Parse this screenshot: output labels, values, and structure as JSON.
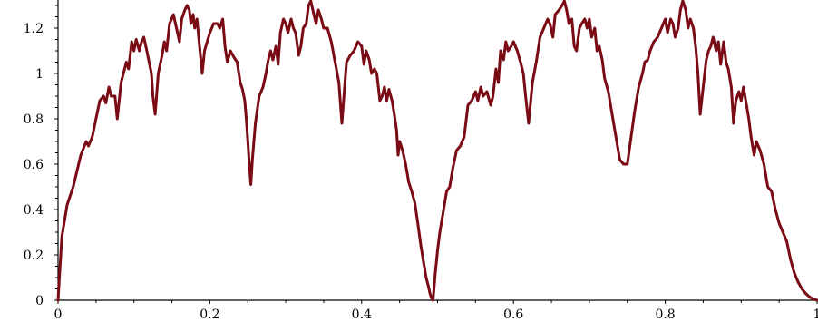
{
  "chart_data": {
    "type": "line",
    "title": "",
    "xlabel": "",
    "ylabel": "",
    "xlim": [
      0,
      1
    ],
    "ylim": [
      0,
      1.3
    ],
    "grid": false,
    "x_ticks": [
      0,
      0.2,
      0.4,
      0.6,
      0.8,
      1
    ],
    "x_tick_labels": [
      "0",
      "0.2",
      "0.4",
      "0.6",
      "0.8",
      "1"
    ],
    "y_ticks": [
      0,
      0.2,
      0.4,
      0.6,
      0.8,
      1,
      1.2
    ],
    "y_tick_labels": [
      "0",
      "0.2",
      "0.4",
      "0.6",
      "0.8",
      "1",
      "1.2"
    ],
    "series": [
      {
        "color": "#7a0a14",
        "points": [
          [
            0,
            0
          ],
          [
            0.005,
            0.28
          ],
          [
            0.012,
            0.42
          ],
          [
            0.02,
            0.5
          ],
          [
            0.03,
            0.64
          ],
          [
            0.037,
            0.7
          ],
          [
            0.04,
            0.68
          ],
          [
            0.045,
            0.72
          ],
          [
            0.05,
            0.8
          ],
          [
            0.055,
            0.88
          ],
          [
            0.06,
            0.9
          ],
          [
            0.063,
            0.87
          ],
          [
            0.067,
            0.94
          ],
          [
            0.07,
            0.9
          ],
          [
            0.075,
            0.9
          ],
          [
            0.078,
            0.8
          ],
          [
            0.083,
            0.96
          ],
          [
            0.09,
            1.05
          ],
          [
            0.093,
            1.02
          ],
          [
            0.097,
            1.14
          ],
          [
            0.1,
            1.1
          ],
          [
            0.103,
            1.15
          ],
          [
            0.107,
            1.1
          ],
          [
            0.11,
            1.14
          ],
          [
            0.113,
            1.16
          ],
          [
            0.117,
            1.1
          ],
          [
            0.12,
            1.05
          ],
          [
            0.123,
            1.0
          ],
          [
            0.125,
            0.9
          ],
          [
            0.128,
            0.82
          ],
          [
            0.132,
            1.0
          ],
          [
            0.137,
            1.08
          ],
          [
            0.14,
            1.14
          ],
          [
            0.143,
            1.1
          ],
          [
            0.147,
            1.22
          ],
          [
            0.152,
            1.26
          ],
          [
            0.156,
            1.2
          ],
          [
            0.16,
            1.14
          ],
          [
            0.163,
            1.24
          ],
          [
            0.167,
            1.28
          ],
          [
            0.17,
            1.3
          ],
          [
            0.173,
            1.28
          ],
          [
            0.175,
            1.22
          ],
          [
            0.178,
            1.26
          ],
          [
            0.18,
            1.2
          ],
          [
            0.183,
            1.24
          ],
          [
            0.187,
            1.1
          ],
          [
            0.19,
            1.0
          ],
          [
            0.193,
            1.1
          ],
          [
            0.2,
            1.18
          ],
          [
            0.205,
            1.22
          ],
          [
            0.21,
            1.22
          ],
          [
            0.213,
            1.2
          ],
          [
            0.217,
            1.24
          ],
          [
            0.22,
            1.12
          ],
          [
            0.223,
            1.05
          ],
          [
            0.227,
            1.1
          ],
          [
            0.232,
            1.07
          ],
          [
            0.236,
            1.05
          ],
          [
            0.24,
            0.96
          ],
          [
            0.243,
            0.93
          ],
          [
            0.246,
            0.88
          ],
          [
            0.248,
            0.8
          ],
          [
            0.25,
            0.7
          ],
          [
            0.252,
            0.6
          ],
          [
            0.254,
            0.51
          ],
          [
            0.256,
            0.62
          ],
          [
            0.26,
            0.78
          ],
          [
            0.265,
            0.9
          ],
          [
            0.27,
            0.94
          ],
          [
            0.274,
            1.0
          ],
          [
            0.277,
            1.06
          ],
          [
            0.28,
            1.1
          ],
          [
            0.283,
            1.06
          ],
          [
            0.287,
            1.12
          ],
          [
            0.29,
            1.04
          ],
          [
            0.293,
            1.18
          ],
          [
            0.297,
            1.24
          ],
          [
            0.3,
            1.22
          ],
          [
            0.303,
            1.18
          ],
          [
            0.307,
            1.24
          ],
          [
            0.31,
            1.2
          ],
          [
            0.313,
            1.18
          ],
          [
            0.317,
            1.08
          ],
          [
            0.32,
            1.12
          ],
          [
            0.323,
            1.2
          ],
          [
            0.327,
            1.22
          ],
          [
            0.33,
            1.3
          ],
          [
            0.333,
            1.32
          ],
          [
            0.337,
            1.26
          ],
          [
            0.34,
            1.22
          ],
          [
            0.343,
            1.28
          ],
          [
            0.347,
            1.24
          ],
          [
            0.35,
            1.2
          ],
          [
            0.355,
            1.2
          ],
          [
            0.36,
            1.14
          ],
          [
            0.365,
            1.05
          ],
          [
            0.37,
            0.96
          ],
          [
            0.374,
            0.78
          ],
          [
            0.378,
            0.96
          ],
          [
            0.38,
            1.05
          ],
          [
            0.385,
            1.08
          ],
          [
            0.39,
            1.1
          ],
          [
            0.395,
            1.14
          ],
          [
            0.4,
            1.12
          ],
          [
            0.403,
            1.04
          ],
          [
            0.406,
            1.1
          ],
          [
            0.41,
            1.06
          ],
          [
            0.413,
            1.0
          ],
          [
            0.417,
            1.02
          ],
          [
            0.42,
            1.0
          ],
          [
            0.424,
            0.88
          ],
          [
            0.427,
            0.9
          ],
          [
            0.43,
            0.94
          ],
          [
            0.433,
            0.88
          ],
          [
            0.436,
            0.93
          ],
          [
            0.44,
            0.88
          ],
          [
            0.443,
            0.82
          ],
          [
            0.446,
            0.75
          ],
          [
            0.448,
            0.64
          ],
          [
            0.45,
            0.7
          ],
          [
            0.454,
            0.66
          ],
          [
            0.458,
            0.6
          ],
          [
            0.462,
            0.52
          ],
          [
            0.466,
            0.48
          ],
          [
            0.47,
            0.43
          ],
          [
            0.474,
            0.34
          ],
          [
            0.478,
            0.24
          ],
          [
            0.482,
            0.16
          ],
          [
            0.485,
            0.1
          ],
          [
            0.488,
            0.06
          ],
          [
            0.49,
            0.03
          ],
          [
            0.492,
            0.01
          ],
          [
            0.494,
            0.0
          ],
          [
            0.497,
            0.12
          ],
          [
            0.5,
            0.22
          ],
          [
            0.503,
            0.3
          ],
          [
            0.508,
            0.4
          ],
          [
            0.512,
            0.48
          ],
          [
            0.516,
            0.5
          ],
          [
            0.52,
            0.58
          ],
          [
            0.525,
            0.66
          ],
          [
            0.53,
            0.68
          ],
          [
            0.535,
            0.72
          ],
          [
            0.54,
            0.86
          ],
          [
            0.545,
            0.88
          ],
          [
            0.55,
            0.92
          ],
          [
            0.553,
            0.88
          ],
          [
            0.557,
            0.94
          ],
          [
            0.56,
            0.9
          ],
          [
            0.565,
            0.92
          ],
          [
            0.57,
            0.86
          ],
          [
            0.573,
            0.9
          ],
          [
            0.577,
            1.02
          ],
          [
            0.58,
            0.96
          ],
          [
            0.583,
            1.1
          ],
          [
            0.587,
            1.06
          ],
          [
            0.59,
            1.14
          ],
          [
            0.593,
            1.1
          ],
          [
            0.597,
            1.12
          ],
          [
            0.6,
            1.14
          ],
          [
            0.605,
            1.1
          ],
          [
            0.61,
            1.04
          ],
          [
            0.613,
            1.0
          ],
          [
            0.616,
            0.9
          ],
          [
            0.62,
            0.78
          ],
          [
            0.625,
            0.96
          ],
          [
            0.63,
            1.05
          ],
          [
            0.635,
            1.16
          ],
          [
            0.64,
            1.2
          ],
          [
            0.645,
            1.24
          ],
          [
            0.648,
            1.22
          ],
          [
            0.652,
            1.16
          ],
          [
            0.655,
            1.26
          ],
          [
            0.66,
            1.28
          ],
          [
            0.664,
            1.3
          ],
          [
            0.667,
            1.32
          ],
          [
            0.67,
            1.28
          ],
          [
            0.673,
            1.22
          ],
          [
            0.677,
            1.24
          ],
          [
            0.68,
            1.12
          ],
          [
            0.683,
            1.1
          ],
          [
            0.687,
            1.2
          ],
          [
            0.69,
            1.22
          ],
          [
            0.694,
            1.24
          ],
          [
            0.697,
            1.2
          ],
          [
            0.7,
            1.24
          ],
          [
            0.703,
            1.16
          ],
          [
            0.707,
            1.2
          ],
          [
            0.71,
            1.1
          ],
          [
            0.713,
            1.12
          ],
          [
            0.717,
            1.06
          ],
          [
            0.72,
            0.98
          ],
          [
            0.725,
            0.92
          ],
          [
            0.73,
            0.82
          ],
          [
            0.735,
            0.72
          ],
          [
            0.74,
            0.62
          ],
          [
            0.745,
            0.6
          ],
          [
            0.75,
            0.6
          ],
          [
            0.755,
            0.72
          ],
          [
            0.76,
            0.84
          ],
          [
            0.765,
            0.94
          ],
          [
            0.77,
            1.0
          ],
          [
            0.773,
            1.05
          ],
          [
            0.777,
            1.06
          ],
          [
            0.78,
            1.1
          ],
          [
            0.785,
            1.14
          ],
          [
            0.79,
            1.16
          ],
          [
            0.795,
            1.2
          ],
          [
            0.8,
            1.24
          ],
          [
            0.803,
            1.18
          ],
          [
            0.807,
            1.24
          ],
          [
            0.81,
            1.22
          ],
          [
            0.813,
            1.16
          ],
          [
            0.817,
            1.2
          ],
          [
            0.82,
            1.28
          ],
          [
            0.823,
            1.32
          ],
          [
            0.827,
            1.28
          ],
          [
            0.83,
            1.2
          ],
          [
            0.833,
            1.24
          ],
          [
            0.837,
            1.2
          ],
          [
            0.84,
            1.12
          ],
          [
            0.843,
            1.0
          ],
          [
            0.846,
            0.82
          ],
          [
            0.85,
            0.94
          ],
          [
            0.854,
            1.06
          ],
          [
            0.857,
            1.1
          ],
          [
            0.86,
            1.12
          ],
          [
            0.863,
            1.16
          ],
          [
            0.867,
            1.1
          ],
          [
            0.87,
            1.14
          ],
          [
            0.873,
            1.04
          ],
          [
            0.877,
            1.14
          ],
          [
            0.88,
            1.05
          ],
          [
            0.883,
            1.02
          ],
          [
            0.887,
            0.94
          ],
          [
            0.89,
            0.78
          ],
          [
            0.893,
            0.88
          ],
          [
            0.897,
            0.92
          ],
          [
            0.9,
            0.88
          ],
          [
            0.903,
            0.94
          ],
          [
            0.907,
            0.86
          ],
          [
            0.91,
            0.8
          ],
          [
            0.913,
            0.72
          ],
          [
            0.917,
            0.64
          ],
          [
            0.92,
            0.7
          ],
          [
            0.925,
            0.66
          ],
          [
            0.93,
            0.6
          ],
          [
            0.935,
            0.5
          ],
          [
            0.94,
            0.48
          ],
          [
            0.945,
            0.4
          ],
          [
            0.95,
            0.34
          ],
          [
            0.955,
            0.3
          ],
          [
            0.96,
            0.26
          ],
          [
            0.965,
            0.18
          ],
          [
            0.97,
            0.12
          ],
          [
            0.975,
            0.08
          ],
          [
            0.98,
            0.05
          ],
          [
            0.985,
            0.03
          ],
          [
            0.99,
            0.015
          ],
          [
            0.995,
            0.005
          ],
          [
            1,
            0
          ]
        ]
      }
    ]
  }
}
